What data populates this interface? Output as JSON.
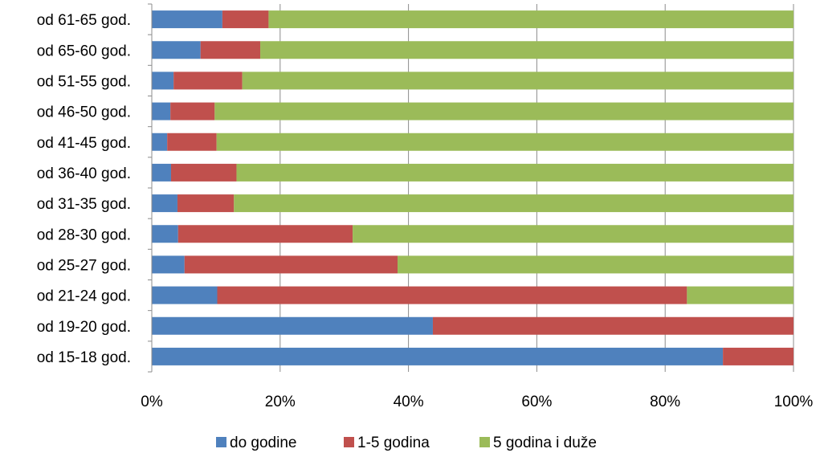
{
  "chart_data": {
    "type": "bar",
    "orientation": "horizontal",
    "stacked": "percent",
    "categories": [
      "od 61-65  god.",
      "od 65-60 god.",
      "od 51-55 god.",
      "od 46-50 god.",
      "od 41-45 god.",
      "od 36-40 god.",
      "od 31-35 god.",
      "od 28-30 god.",
      "od 25-27 god.",
      "od 21-24 god.",
      "od 19-20 god.",
      "od 15-18 god."
    ],
    "series": [
      {
        "name": "do godine",
        "color": "#4f81bd",
        "values": [
          11.0,
          7.6,
          3.4,
          2.9,
          2.4,
          3.0,
          4.0,
          4.1,
          5.1,
          10.2,
          43.8,
          89.0
        ]
      },
      {
        "name": "1-5 godina",
        "color": "#c0504d",
        "values": [
          7.2,
          9.3,
          10.7,
          6.9,
          7.7,
          10.2,
          8.8,
          27.2,
          33.2,
          73.2,
          56.2,
          11.0
        ]
      },
      {
        "name": "5 godina i duže",
        "color": "#9bbb59",
        "values": [
          81.8,
          83.1,
          85.9,
          90.2,
          89.9,
          86.8,
          87.2,
          68.7,
          61.7,
          16.6,
          0.0,
          0.0
        ]
      }
    ],
    "xlim": [
      0,
      100
    ],
    "x_ticks": [
      "0%",
      "20%",
      "40%",
      "60%",
      "80%",
      "100%"
    ],
    "grid": true,
    "legend_position": "bottom",
    "title": "",
    "xlabel": "",
    "ylabel": ""
  }
}
